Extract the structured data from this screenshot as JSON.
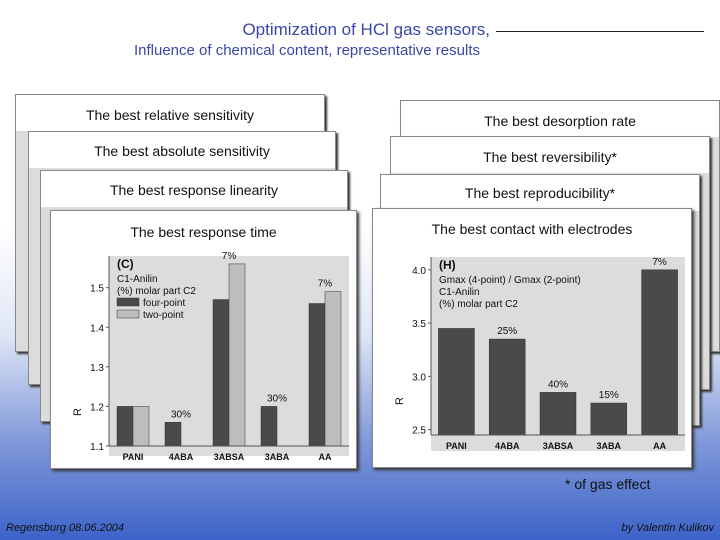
{
  "header": {
    "title_line1": "Optimization of HCl gas sensors,",
    "title_line2": "Influence of chemical content, representative results"
  },
  "left_cards": [
    "The best relative sensitivity",
    "The best absolute sensitivity",
    "The best response linearity",
    "The best response time"
  ],
  "right_cards": [
    "The best desorption rate",
    "The best reversibility*",
    "The best reproducibility*",
    "The best contact with electrodes"
  ],
  "footnote": "* of gas effect",
  "footer": {
    "left": "Regensburg 08.06.2004",
    "right": "by Valentin Kulikov"
  },
  "chart_data": [
    {
      "type": "bar",
      "panel": "(C)",
      "categories": [
        "PANI",
        "4ABA",
        "3ABSA",
        "3ABA",
        "AA"
      ],
      "series": [
        {
          "name": "four-point",
          "values": [
            1.2,
            1.16,
            1.47,
            1.2,
            1.46
          ]
        },
        {
          "name": "two-point",
          "values": [
            1.2,
            null,
            1.56,
            null,
            1.49
          ]
        }
      ],
      "bar_labels": [
        "",
        "30%",
        "7%",
        "30%",
        "7%"
      ],
      "legend_title": "C1-Anilin\n(%) molar part C2",
      "yticks": [
        1.1,
        1.2,
        1.3,
        1.4,
        1.5
      ],
      "ylim": [
        1.1,
        1.58
      ],
      "ylabel": "R"
    },
    {
      "type": "bar",
      "panel": "(H)",
      "categories": [
        "PANI",
        "4ABA",
        "3ABSA",
        "3ABA",
        "AA"
      ],
      "series": [
        {
          "name": "Gmax (4-point) / Gmax (2-point)",
          "values": [
            3.45,
            3.35,
            2.85,
            2.75,
            4.0
          ]
        }
      ],
      "bar_labels": [
        "",
        "25%",
        "40%",
        "15%",
        "7%"
      ],
      "legend_title": "Gmax (4-point) / Gmax (2-point)\nC1-Anilin\n(%) molar part C2",
      "yticks": [
        2.5,
        3.0,
        3.5,
        4.0
      ],
      "ylim": [
        2.45,
        4.12
      ],
      "ylabel": "R"
    }
  ]
}
